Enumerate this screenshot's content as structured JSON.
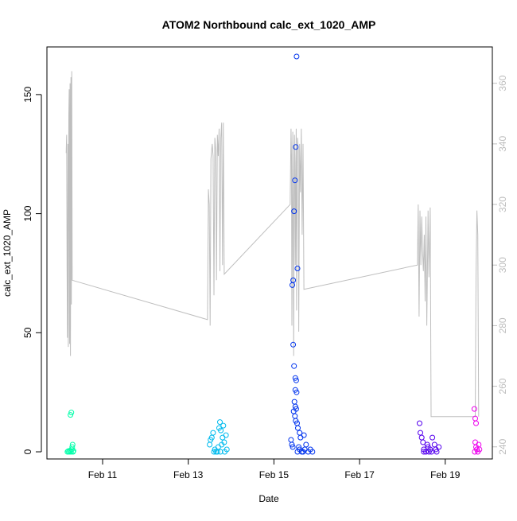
{
  "chart_data": {
    "type": "scatter",
    "title": "ATOM2 Northbound calc_ext_1020_AMP",
    "xlabel": "Date",
    "ylabel": "calc_ext_1020_AMP",
    "x_ticks": [
      "Feb 11",
      "Feb 13",
      "Feb 15",
      "Feb 17",
      "Feb 19"
    ],
    "x_tick_days": [
      11,
      13,
      15,
      17,
      19
    ],
    "xlim_days": [
      9.7,
      20.1
    ],
    "ylim": [
      -3,
      170
    ],
    "y_ticks": [
      0,
      50,
      100,
      150
    ],
    "y2lim": [
      236,
      372
    ],
    "y2_ticks": [
      240,
      260,
      280,
      300,
      320,
      340,
      360
    ],
    "y2_color": "#bebebe",
    "line_color": "#bebebe",
    "series": [
      {
        "color": "#00ffaa",
        "points": [
          [
            10.18,
            0
          ],
          [
            10.2,
            0.3
          ],
          [
            10.22,
            0
          ],
          [
            10.24,
            0.5
          ],
          [
            10.26,
            0
          ],
          [
            10.28,
            1
          ],
          [
            10.29,
            2
          ],
          [
            10.3,
            3
          ],
          [
            10.31,
            0
          ],
          [
            10.25,
            15.5
          ],
          [
            10.27,
            16.5
          ],
          [
            10.32,
            0.4
          ]
        ]
      },
      {
        "color": "#00bbee",
        "points": [
          [
            13.5,
            3
          ],
          [
            13.52,
            5
          ],
          [
            13.55,
            6
          ],
          [
            13.58,
            8
          ],
          [
            13.6,
            0
          ],
          [
            13.62,
            1
          ],
          [
            13.65,
            0
          ],
          [
            13.7,
            2
          ],
          [
            13.72,
            10
          ],
          [
            13.74,
            12.5
          ],
          [
            13.76,
            9
          ],
          [
            13.78,
            3
          ],
          [
            13.8,
            6
          ],
          [
            13.82,
            11
          ],
          [
            13.84,
            4
          ],
          [
            13.85,
            0
          ],
          [
            13.88,
            7
          ],
          [
            13.9,
            1
          ],
          [
            13.75,
            0
          ],
          [
            13.68,
            0
          ]
        ]
      },
      {
        "color": "#0033ee",
        "points": [
          [
            15.43,
            70
          ],
          [
            15.45,
            72
          ],
          [
            15.47,
            101
          ],
          [
            15.49,
            114
          ],
          [
            15.51,
            128
          ],
          [
            15.53,
            166
          ],
          [
            15.55,
            77
          ],
          [
            15.45,
            45
          ],
          [
            15.47,
            36
          ],
          [
            15.5,
            31
          ],
          [
            15.52,
            30
          ],
          [
            15.5,
            26
          ],
          [
            15.53,
            25
          ],
          [
            15.48,
            21
          ],
          [
            15.5,
            19
          ],
          [
            15.52,
            18
          ],
          [
            15.46,
            17
          ],
          [
            15.49,
            15
          ],
          [
            15.51,
            13
          ],
          [
            15.54,
            12
          ],
          [
            15.56,
            10
          ],
          [
            15.6,
            8
          ],
          [
            15.62,
            6
          ],
          [
            15.7,
            7
          ],
          [
            15.75,
            3
          ],
          [
            15.4,
            5
          ],
          [
            15.42,
            3
          ],
          [
            15.44,
            2
          ],
          [
            15.6,
            1
          ],
          [
            15.65,
            0
          ],
          [
            15.8,
            0
          ],
          [
            15.85,
            1
          ],
          [
            15.9,
            0
          ],
          [
            15.55,
            0
          ],
          [
            15.58,
            2
          ],
          [
            15.68,
            0
          ],
          [
            15.72,
            1
          ]
        ]
      },
      {
        "color": "#5500ee",
        "points": [
          [
            18.4,
            12
          ],
          [
            18.42,
            8
          ],
          [
            18.45,
            6
          ],
          [
            18.48,
            4
          ],
          [
            18.5,
            1
          ],
          [
            18.55,
            0
          ],
          [
            18.6,
            2
          ],
          [
            18.62,
            0
          ],
          [
            18.65,
            1
          ],
          [
            18.7,
            6
          ],
          [
            18.75,
            3
          ],
          [
            18.8,
            0
          ],
          [
            18.85,
            2
          ],
          [
            18.5,
            0
          ],
          [
            18.58,
            3
          ],
          [
            18.68,
            0
          ],
          [
            18.78,
            1
          ]
        ]
      },
      {
        "color": "#ee00ee",
        "points": [
          [
            19.68,
            18
          ],
          [
            19.7,
            14
          ],
          [
            19.72,
            12
          ],
          [
            19.7,
            4
          ],
          [
            19.72,
            2
          ],
          [
            19.74,
            1
          ],
          [
            19.76,
            0
          ],
          [
            19.78,
            3
          ],
          [
            19.69,
            0
          ],
          [
            19.8,
            1
          ]
        ]
      }
    ],
    "line_secondary": [
      [
        10.15,
        337
      ],
      [
        10.16,
        343
      ],
      [
        10.17,
        300
      ],
      [
        10.18,
        276
      ],
      [
        10.19,
        340
      ],
      [
        10.2,
        273
      ],
      [
        10.21,
        349
      ],
      [
        10.22,
        358
      ],
      [
        10.23,
        274
      ],
      [
        10.24,
        360
      ],
      [
        10.25,
        270
      ],
      [
        10.26,
        362
      ],
      [
        10.27,
        287
      ],
      [
        10.28,
        364
      ],
      [
        10.29,
        295
      ],
      [
        13.45,
        282
      ],
      [
        13.47,
        325
      ],
      [
        13.49,
        320
      ],
      [
        13.51,
        280
      ],
      [
        13.53,
        335
      ],
      [
        13.56,
        340
      ],
      [
        13.58,
        336
      ],
      [
        13.6,
        290
      ],
      [
        13.62,
        342
      ],
      [
        13.64,
        338
      ],
      [
        13.66,
        295
      ],
      [
        13.68,
        343
      ],
      [
        13.7,
        336
      ],
      [
        13.72,
        345
      ],
      [
        13.74,
        298
      ],
      [
        13.76,
        342
      ],
      [
        13.78,
        347
      ],
      [
        13.8,
        300
      ],
      [
        13.82,
        347
      ],
      [
        13.84,
        297
      ],
      [
        15.38,
        320
      ],
      [
        15.4,
        345
      ],
      [
        15.41,
        336
      ],
      [
        15.42,
        280
      ],
      [
        15.44,
        344
      ],
      [
        15.45,
        328
      ],
      [
        15.46,
        270
      ],
      [
        15.48,
        343
      ],
      [
        15.49,
        334
      ],
      [
        15.5,
        300
      ],
      [
        15.52,
        345
      ],
      [
        15.53,
        285
      ],
      [
        15.55,
        342
      ],
      [
        15.57,
        338
      ],
      [
        15.58,
        278
      ],
      [
        15.6,
        340
      ],
      [
        15.62,
        324
      ],
      [
        15.64,
        345
      ],
      [
        15.66,
        310
      ],
      [
        15.68,
        340
      ],
      [
        15.7,
        292
      ],
      [
        18.35,
        300
      ],
      [
        18.37,
        320
      ],
      [
        18.39,
        283
      ],
      [
        18.41,
        318
      ],
      [
        18.43,
        300
      ],
      [
        18.45,
        316
      ],
      [
        18.47,
        305
      ],
      [
        18.49,
        298
      ],
      [
        18.51,
        310
      ],
      [
        18.53,
        288
      ],
      [
        18.55,
        316
      ],
      [
        18.57,
        280
      ],
      [
        18.6,
        318
      ],
      [
        18.62,
        296
      ],
      [
        18.65,
        319
      ],
      [
        18.67,
        250
      ],
      [
        19.7,
        250
      ],
      [
        19.72,
        296
      ],
      [
        19.74,
        318
      ],
      [
        19.76,
        310
      ],
      [
        19.78,
        250
      ]
    ]
  }
}
